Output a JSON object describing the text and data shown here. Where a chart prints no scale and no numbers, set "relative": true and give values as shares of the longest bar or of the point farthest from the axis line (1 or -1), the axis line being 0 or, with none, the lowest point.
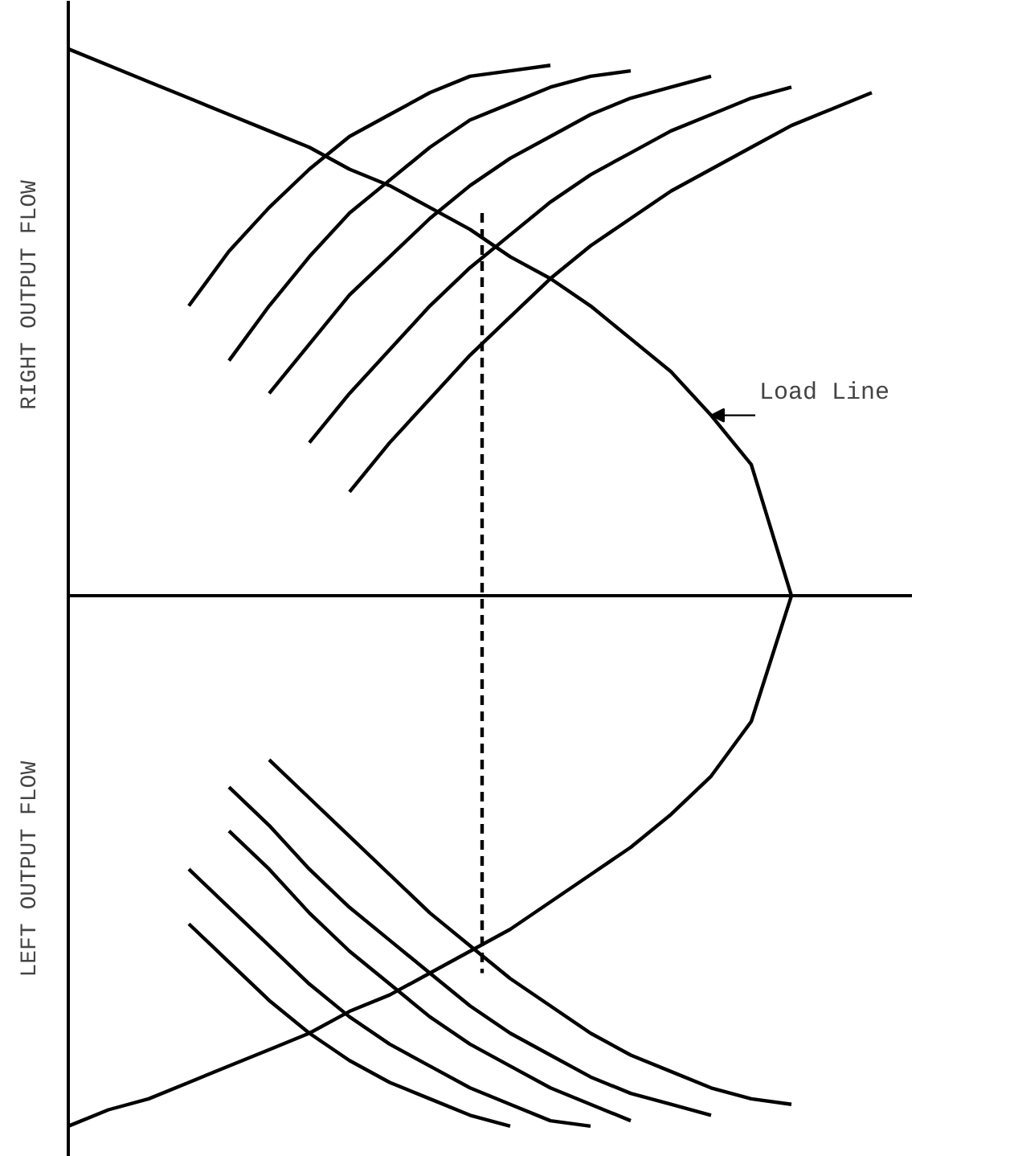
{
  "chart_data": {
    "type": "line",
    "relative": true,
    "ylabel": "RIGHT OUTPUT FLOW",
    "annotations": [
      "Load Line",
      "LEFT OUTPUT FLOW"
    ],
    "categories": [
      null,
      null,
      null,
      null,
      null,
      null,
      null,
      null,
      null,
      null,
      null,
      null,
      null,
      null,
      null,
      null,
      null,
      null,
      null,
      null,
      null,
      null
    ],
    "series": [
      {
        "color": "#000000",
        "values": [
          1.0,
          0.97,
          0.94,
          0.91,
          0.88,
          0.85,
          0.82,
          0.78,
          0.75,
          0.71,
          0.67,
          0.62,
          0.58,
          0.53,
          0.47,
          0.41,
          0.33,
          0.24,
          0,
          null,
          null,
          null
        ]
      },
      {
        "color": "#000000",
        "values": [
          -0.97,
          -0.94,
          -0.92,
          -0.89,
          -0.86,
          -0.83,
          -0.8,
          -0.76,
          -0.73,
          -0.69,
          -0.65,
          -0.61,
          -0.56,
          -0.51,
          -0.46,
          -0.4,
          -0.33,
          -0.23,
          0,
          null,
          null,
          null
        ]
      },
      {
        "color": "#000000",
        "values": [
          null,
          null,
          null,
          0.53,
          0.63,
          0.71,
          0.78,
          0.84,
          0.88,
          0.92,
          0.95,
          0.96,
          0.97,
          null,
          null,
          null,
          null,
          null,
          null,
          null,
          null,
          null
        ]
      },
      {
        "color": "#000000",
        "values": [
          null,
          null,
          null,
          null,
          0.43,
          0.53,
          0.62,
          0.7,
          0.76,
          0.82,
          0.87,
          0.9,
          0.93,
          0.95,
          0.96,
          null,
          null,
          null,
          null,
          null,
          null,
          null
        ]
      },
      {
        "color": "#000000",
        "values": [
          null,
          null,
          null,
          null,
          null,
          0.37,
          0.46,
          0.55,
          0.62,
          0.69,
          0.75,
          0.8,
          0.84,
          0.88,
          0.91,
          0.93,
          0.95,
          null,
          null,
          null,
          null,
          null
        ]
      },
      {
        "color": "#000000",
        "values": [
          null,
          null,
          null,
          null,
          null,
          null,
          0.28,
          0.37,
          0.45,
          0.53,
          0.6,
          0.66,
          0.72,
          0.77,
          0.81,
          0.85,
          0.88,
          0.91,
          0.93,
          null,
          null,
          null
        ]
      },
      {
        "color": "#000000",
        "values": [
          null,
          null,
          null,
          null,
          null,
          null,
          null,
          0.19,
          0.28,
          0.36,
          0.44,
          0.51,
          0.58,
          0.64,
          0.69,
          0.74,
          0.78,
          0.82,
          0.86,
          0.89,
          0.92,
          null
        ]
      },
      {
        "color": "#000000",
        "values": [
          null,
          null,
          null,
          -0.6,
          -0.67,
          -0.74,
          -0.8,
          -0.85,
          -0.89,
          -0.92,
          -0.95,
          -0.97,
          null,
          null,
          null,
          null,
          null,
          null,
          null,
          null,
          null,
          null
        ]
      },
      {
        "color": "#000000",
        "values": [
          null,
          null,
          null,
          -0.5,
          -0.57,
          -0.64,
          -0.71,
          -0.77,
          -0.82,
          -0.86,
          -0.9,
          -0.93,
          -0.96,
          -0.97,
          null,
          null,
          null,
          null,
          null,
          null,
          null,
          null
        ]
      },
      {
        "color": "#000000",
        "values": [
          null,
          null,
          null,
          null,
          -0.43,
          -0.5,
          -0.58,
          -0.65,
          -0.71,
          -0.77,
          -0.82,
          -0.86,
          -0.9,
          -0.93,
          -0.96,
          null,
          null,
          null,
          null,
          null,
          null,
          null
        ]
      },
      {
        "color": "#000000",
        "values": [
          null,
          null,
          null,
          null,
          -0.35,
          -0.42,
          -0.5,
          -0.57,
          -0.63,
          -0.69,
          -0.75,
          -0.8,
          -0.84,
          -0.88,
          -0.91,
          -0.93,
          -0.95,
          null,
          null,
          null,
          null,
          null
        ]
      },
      {
        "color": "#000000",
        "values": [
          null,
          null,
          null,
          null,
          null,
          -0.3,
          -0.37,
          -0.44,
          -0.51,
          -0.58,
          -0.64,
          -0.7,
          -0.75,
          -0.8,
          -0.84,
          -0.87,
          -0.9,
          -0.92,
          -0.93,
          null,
          null,
          null
        ]
      }
    ]
  }
}
